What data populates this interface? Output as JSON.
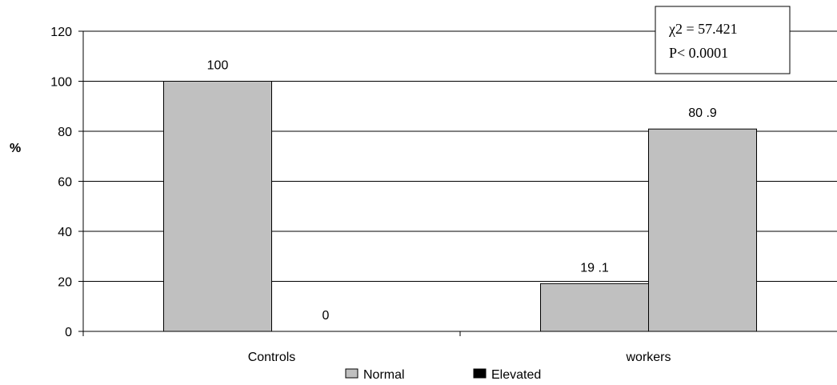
{
  "chart_data": {
    "type": "bar",
    "categories": [
      "Controls",
      "workers"
    ],
    "series": [
      {
        "name": "Normal",
        "values": [
          100,
          19.1
        ],
        "color": "#c0c0c0"
      },
      {
        "name": "Elevated",
        "values": [
          0,
          80.9
        ],
        "color": "#c0c0c0"
      }
    ],
    "data_labels": [
      [
        "100",
        "19 .1"
      ],
      [
        "0",
        "80 .9"
      ]
    ],
    "legend_colors": [
      "#c0c0c0",
      "#000000"
    ],
    "ylabel": "%",
    "ylim": [
      0,
      120
    ],
    "yticks": [
      0,
      20,
      40,
      60,
      80,
      100,
      120
    ],
    "grid": true,
    "legend_placement": "bottom",
    "annotation": {
      "line1": "χ2 = 57.421",
      "line2": "P< 0.0001"
    }
  }
}
